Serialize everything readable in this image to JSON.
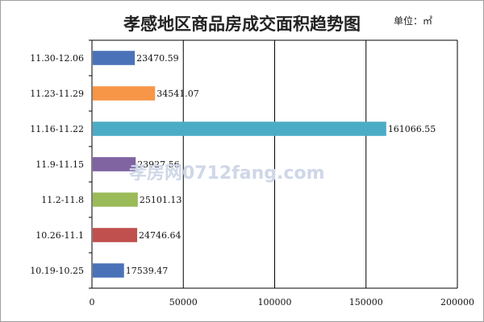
{
  "chart_data": {
    "type": "bar",
    "orientation": "horizontal",
    "title": "孝感地区商品房成交面积趋势图",
    "unit_label": "单位：㎡",
    "categories": [
      "11.30-12.06",
      "11.23-11.29",
      "11.16-11.22",
      "11.9-11.15",
      "11.2-11.8",
      "10.26-11.1",
      "10.19-10.25"
    ],
    "values": [
      23470.59,
      34541.07,
      161066.55,
      23927.56,
      25101.13,
      24746.64,
      17539.47
    ],
    "value_labels": [
      "23470.59",
      "34541.07",
      "161066.55",
      "23927.56",
      "25101.13",
      "24746.64",
      "17539.47"
    ],
    "colors": [
      "#4a72b8",
      "#f79646",
      "#4bacc6",
      "#8064a2",
      "#9bbb59",
      "#c0504d",
      "#4a72b8"
    ],
    "xlim": [
      0,
      200000
    ],
    "xticks": [
      0,
      50000,
      100000,
      150000,
      200000
    ],
    "xtick_labels": [
      "0",
      "50000",
      "100000",
      "150000",
      "200000"
    ],
    "grid": true,
    "legend": "none"
  },
  "watermark": "孝房网0712fang.com"
}
